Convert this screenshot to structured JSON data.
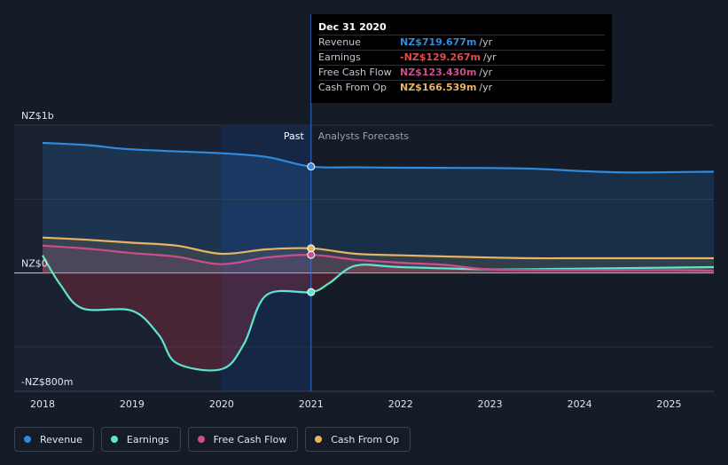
{
  "chart_data": {
    "type": "line",
    "title": "",
    "xlabel": "",
    "ylabel": "",
    "x_ticks": [
      "2018",
      "2019",
      "2020",
      "2021",
      "2022",
      "2023",
      "2024",
      "2025"
    ],
    "y_ticks": [
      {
        "label": "NZ$1b",
        "value": 1000
      },
      {
        "label": "NZ$0",
        "value": 0
      },
      {
        "label": "-NZ$800m",
        "value": -800
      }
    ],
    "ylim": [
      -800,
      1000
    ],
    "xlim": [
      2018,
      2025.5
    ],
    "units": "NZ$ millions",
    "past_label": "Past",
    "forecast_label": "Analysts Forecasts",
    "divider_x": 2021.0,
    "series": [
      {
        "name": "Revenue",
        "color": "#2f8be0",
        "points": [
          [
            2018.0,
            880
          ],
          [
            2018.5,
            865
          ],
          [
            2018.9,
            840
          ],
          [
            2019.4,
            825
          ],
          [
            2020.0,
            810
          ],
          [
            2020.5,
            785
          ],
          [
            2021.0,
            720
          ],
          [
            2021.5,
            715
          ],
          [
            2022.0,
            712
          ],
          [
            2023.0,
            710
          ],
          [
            2023.5,
            705
          ],
          [
            2024.0,
            690
          ],
          [
            2024.5,
            680
          ],
          [
            2025.0,
            682
          ],
          [
            2025.5,
            685
          ]
        ]
      },
      {
        "name": "Earnings",
        "color": "#5ce6cf",
        "points": [
          [
            2018.0,
            120
          ],
          [
            2018.2,
            -80
          ],
          [
            2018.45,
            -240
          ],
          [
            2019.0,
            -255
          ],
          [
            2019.3,
            -420
          ],
          [
            2019.5,
            -610
          ],
          [
            2020.0,
            -650
          ],
          [
            2020.25,
            -480
          ],
          [
            2020.5,
            -150
          ],
          [
            2021.0,
            -129
          ],
          [
            2021.2,
            -70
          ],
          [
            2021.5,
            50
          ],
          [
            2022.0,
            40
          ],
          [
            2023.0,
            25
          ],
          [
            2024.0,
            30
          ],
          [
            2025.5,
            40
          ]
        ]
      },
      {
        "name": "Free Cash Flow",
        "color": "#d04c8a",
        "points": [
          [
            2018.0,
            185
          ],
          [
            2018.5,
            165
          ],
          [
            2019.0,
            135
          ],
          [
            2019.5,
            110
          ],
          [
            2020.0,
            60
          ],
          [
            2020.5,
            105
          ],
          [
            2021.0,
            123
          ],
          [
            2021.5,
            90
          ],
          [
            2022.0,
            70
          ],
          [
            2022.5,
            55
          ],
          [
            2023.0,
            25
          ],
          [
            2024.0,
            20
          ],
          [
            2025.0,
            20
          ],
          [
            2025.5,
            15
          ]
        ]
      },
      {
        "name": "Cash From Op",
        "color": "#e9b363",
        "points": [
          [
            2018.0,
            240
          ],
          [
            2018.5,
            225
          ],
          [
            2019.0,
            205
          ],
          [
            2019.5,
            185
          ],
          [
            2020.0,
            130
          ],
          [
            2020.5,
            160
          ],
          [
            2021.0,
            167
          ],
          [
            2021.5,
            130
          ],
          [
            2022.0,
            120
          ],
          [
            2023.0,
            105
          ],
          [
            2023.5,
            100
          ],
          [
            2024.0,
            100
          ],
          [
            2025.0,
            100
          ],
          [
            2025.5,
            100
          ]
        ]
      }
    ],
    "legend": [
      "Revenue",
      "Earnings",
      "Free Cash Flow",
      "Cash From Op"
    ]
  },
  "tooltip": {
    "date": "Dec 31 2020",
    "rows": [
      {
        "name": "Revenue",
        "value": "NZ$719.677m",
        "unit": "/yr",
        "color": "#2f8be0"
      },
      {
        "name": "Earnings",
        "value": "-NZ$129.267m",
        "unit": "/yr",
        "color": "#e14b4b"
      },
      {
        "name": "Free Cash Flow",
        "value": "NZ$123.430m",
        "unit": "/yr",
        "color": "#d04c8a"
      },
      {
        "name": "Cash From Op",
        "value": "NZ$166.539m",
        "unit": "/yr",
        "color": "#e9b363"
      }
    ]
  },
  "legend_items": [
    {
      "label": "Revenue",
      "color": "#2f8be0"
    },
    {
      "label": "Earnings",
      "color": "#5ce6cf"
    },
    {
      "label": "Free Cash Flow",
      "color": "#d04c8a"
    },
    {
      "label": "Cash From Op",
      "color": "#e9b363"
    }
  ]
}
